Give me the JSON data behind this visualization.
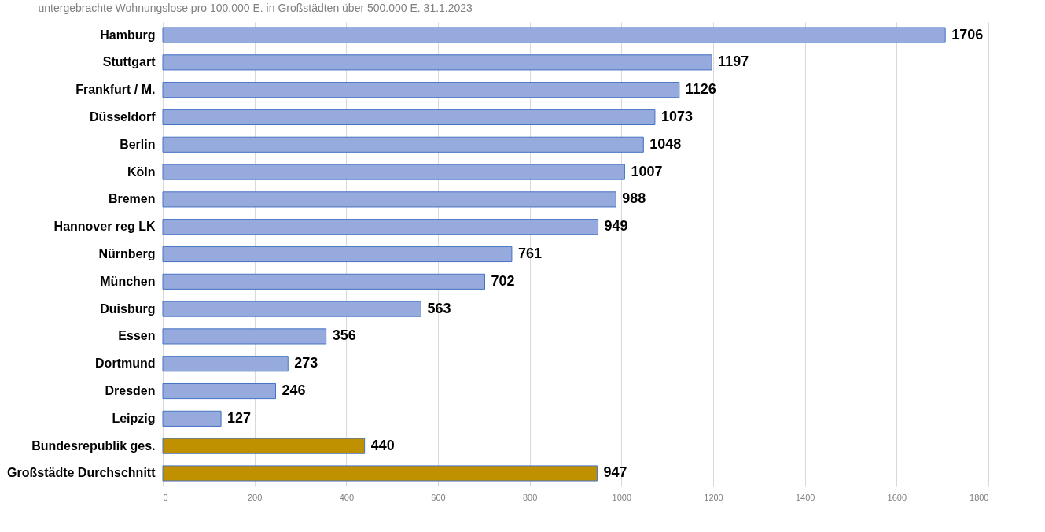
{
  "chart_data": {
    "type": "bar",
    "orientation": "horizontal",
    "title": "untergebrachte  Wohnungslose  pro 100.000 E. in Großstädten  über 500.000 E. 31.1.2023",
    "categories": [
      "Hamburg",
      "Stuttgart",
      "Frankfurt / M.",
      "Düsseldorf",
      "Berlin",
      "Köln",
      "Bremen",
      "Hannover reg LK",
      "Nürnberg",
      "München",
      "Duisburg",
      "Essen",
      "Dortmund",
      "Dresden",
      "Leipzig",
      "Bundesrepublik ges.",
      "Großstädte Durchschnitt"
    ],
    "values": [
      1706,
      1197,
      1126,
      1073,
      1048,
      1007,
      988,
      949,
      761,
      702,
      563,
      356,
      273,
      246,
      127,
      440,
      947
    ],
    "colors": [
      "#97aadd",
      "#97aadd",
      "#97aadd",
      "#97aadd",
      "#97aadd",
      "#97aadd",
      "#97aadd",
      "#97aadd",
      "#97aadd",
      "#97aadd",
      "#97aadd",
      "#97aadd",
      "#97aadd",
      "#97aadd",
      "#97aadd",
      "#bf9000",
      "#bf9000"
    ],
    "xlim": [
      0,
      1800
    ],
    "xticks": [
      0,
      200,
      400,
      600,
      800,
      1000,
      1200,
      1400,
      1600,
      1800
    ],
    "grid": "x",
    "data_labels": true
  }
}
